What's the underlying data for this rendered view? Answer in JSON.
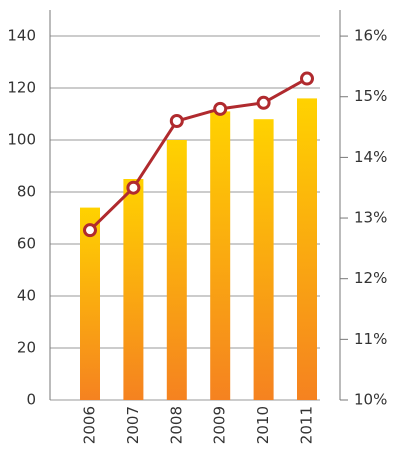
{
  "chart_data": {
    "type": "bar-line",
    "categories": [
      "2006",
      "2007",
      "2008",
      "2009",
      "2010",
      "2011"
    ],
    "series": [
      {
        "type": "bar",
        "color": "#f7941d",
        "values": [
          74,
          85,
          100,
          111,
          108,
          116
        ]
      },
      {
        "type": "line",
        "axis": "y2",
        "color": "#b02a2e",
        "values": [
          12.8,
          13.5,
          14.6,
          14.8,
          14.9,
          15.3
        ]
      }
    ],
    "ylim": [
      0,
      150
    ],
    "yticks": [
      0,
      20,
      40,
      60,
      80,
      100,
      120,
      140
    ],
    "y2lim": [
      10,
      16.43
    ],
    "y2ticks": [
      {
        "value": 10,
        "label": "10%"
      },
      {
        "value": 11,
        "label": "11%"
      },
      {
        "value": 12,
        "label": "12%"
      },
      {
        "value": 13,
        "label": "13%"
      },
      {
        "value": 14,
        "label": "14%"
      },
      {
        "value": 15,
        "label": "15%"
      },
      {
        "value": 16,
        "label": "16%"
      }
    ],
    "grid": true
  }
}
